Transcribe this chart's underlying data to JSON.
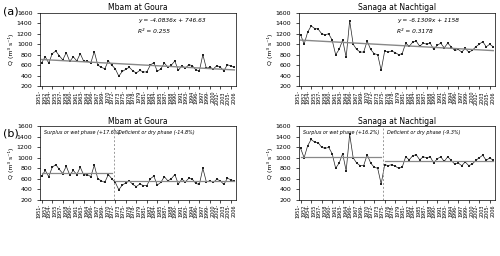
{
  "goura_values": [
    650,
    760,
    640,
    820,
    870,
    780,
    700,
    840,
    670,
    760,
    680,
    820,
    670,
    680,
    640,
    860,
    600,
    560,
    530,
    680,
    600,
    530,
    390,
    480,
    520,
    560,
    490,
    450,
    500,
    470,
    470,
    600,
    650,
    480,
    530,
    640,
    560,
    600,
    680,
    500,
    590,
    540,
    610,
    590,
    510,
    490,
    800,
    540,
    560,
    530,
    590,
    560,
    490,
    610,
    580,
    560
  ],
  "nachtigal_values": [
    1180,
    1000,
    1230,
    1350,
    1300,
    1290,
    1200,
    1180,
    1200,
    1080,
    800,
    900,
    1080,
    750,
    1450,
    1000,
    900,
    850,
    850,
    1060,
    900,
    820,
    800,
    500,
    870,
    850,
    870,
    840,
    800,
    820,
    1020,
    960,
    1040,
    1060,
    960,
    1020,
    1000,
    1020,
    900,
    980,
    1020,
    930,
    1020,
    950,
    880,
    900,
    850,
    920,
    850,
    880,
    950,
    1000,
    1050,
    950,
    1000,
    950
  ],
  "goura_eq": "y = -4.0836x + 746.63",
  "goura_r2": "R² = 0.255",
  "nachtigal_eq": "y = -6.1309x + 1158",
  "nachtigal_r2": "R² = 0.3178",
  "goura_title": "Mbam at Goura",
  "nachtigal_title": "Sanaga at Nachtigal",
  "ylabel": "Q (m³ s⁻¹)",
  "ylim": [
    200,
    1600
  ],
  "yticks": [
    200,
    400,
    600,
    800,
    1000,
    1200,
    1400,
    1600
  ],
  "goura_break": 21,
  "goura_mean1": 710,
  "goura_mean2": 565,
  "nachtigal_break": 24,
  "nachtigal_mean1": 1020,
  "nachtigal_mean2": 930,
  "goura_surplus": "+17.6%",
  "goura_deficit": "-14.8%",
  "nachtigal_surplus": "+16.2%",
  "nachtigal_deficit": "-9.3%",
  "panel_a": "(a)",
  "panel_b": "(b)",
  "line_color": "#888888",
  "marker_color": "#222222",
  "bg_color": "#ffffff",
  "goura_xticks_idx": [
    0,
    3,
    6,
    9,
    12,
    15,
    18,
    21,
    24,
    27,
    30,
    33,
    36,
    39,
    42,
    45,
    48,
    51,
    54
  ],
  "goura_xtick_labels": [
    "1951-\n1952",
    "1954-\n1955",
    "1957-\n1958",
    "1960-\n1961",
    "1963-\n1964",
    "1966-\n1967",
    "1969-\n1970",
    "1972-\n1973",
    "1975-\n1976",
    "1978-\n1979",
    "1981-\n1982",
    "1984-\n1985",
    "1987-\n1988",
    "1990-\n1991",
    "1993-\n1994",
    "1996-\n1997",
    "1999-\n2000",
    "2002-\n2003",
    "2005-\n2006"
  ],
  "nachtigal_xticks_idx": [
    0,
    3,
    6,
    9,
    12,
    15,
    18,
    21,
    24,
    27,
    30,
    33,
    36,
    39,
    42,
    45,
    48,
    51,
    54
  ],
  "nachtigal_xtick_labels": [
    "1951-\n1952",
    "1954-\n1955",
    "1957-\n1958",
    "1960-\n1961",
    "1963-\n1964",
    "1966-\n1967",
    "1969-\n1970",
    "1972-\n1973",
    "1975-\n1976",
    "1978-\n1979",
    "1981-\n1982",
    "1984-\n1985",
    "1987-\n1988",
    "1990-\n1991",
    "1993-\n1994",
    "1996-\n1997",
    "1999-\n2000",
    "2002-\n2003",
    "2005-\n2006"
  ]
}
